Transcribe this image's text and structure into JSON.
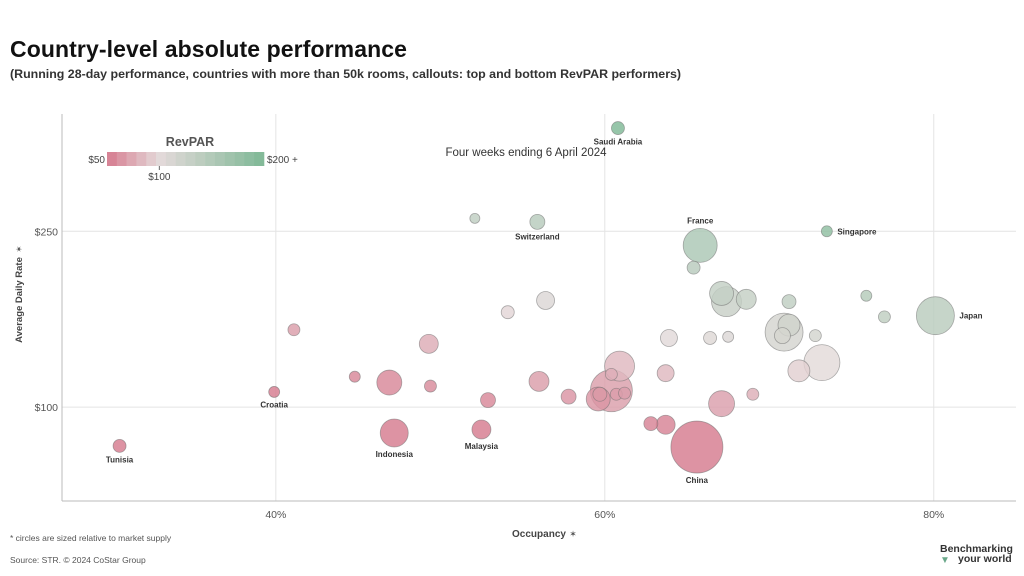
{
  "title": "Country-level absolute performance",
  "subtitle": "(Running 28-day performance, countries with more than 50k rooms, callouts: top and bottom RevPAR performers)",
  "footnote": "* circles are sized relative to market supply",
  "source": "Source: STR. © 2024 CoStar Group",
  "brand": {
    "line1": "Benchmarking",
    "line2": "your world",
    "mark": "▼"
  },
  "colors": {
    "low": "#d67b8f",
    "mid": "#e4dada",
    "high": "#7fb896",
    "grid": "#e4e4e4",
    "axis": "#bbbbbb"
  },
  "chart_data": {
    "type": "scatter",
    "annotation": "Four weeks ending 6 April 2024",
    "xlabel": "Occupancy",
    "ylabel": "Average Daily Rate",
    "axis_pin": "✶",
    "xlim": [
      0.27,
      0.85
    ],
    "ylim": [
      20,
      350
    ],
    "xticks": [
      {
        "v": 0.4,
        "label": "40%"
      },
      {
        "v": 0.6,
        "label": "60%"
      },
      {
        "v": 0.8,
        "label": "80%"
      }
    ],
    "yticks": [
      {
        "v": 100,
        "label": "$100"
      },
      {
        "v": 250,
        "label": "$250"
      }
    ],
    "grid": true,
    "legend": {
      "title": "RevPAR",
      "min_label": "$50",
      "max_label": "$200 +",
      "mid_label": "$100",
      "min": 50,
      "mid": 100,
      "max": 200
    },
    "size_note": "circles are sized relative to market supply",
    "points": [
      {
        "x": 0.608,
        "y": 338,
        "s": 6.5,
        "label": "Saudi Arabia",
        "lpos": "below"
      },
      {
        "x": 0.521,
        "y": 261,
        "s": 5,
        "label": "",
        "lpos": ""
      },
      {
        "x": 0.559,
        "y": 258,
        "s": 7.5,
        "label": "Switzerland",
        "lpos": "below"
      },
      {
        "x": 0.658,
        "y": 238,
        "s": 17,
        "label": "France",
        "lpos": "above"
      },
      {
        "x": 0.654,
        "y": 219,
        "s": 6.5,
        "label": "",
        "lpos": ""
      },
      {
        "x": 0.735,
        "y": 250,
        "s": 5.5,
        "label": "Singapore",
        "lpos": "right"
      },
      {
        "x": 0.801,
        "y": 178,
        "s": 19,
        "label": "Japan",
        "lpos": "right"
      },
      {
        "x": 0.759,
        "y": 195,
        "s": 5.5,
        "label": "",
        "lpos": ""
      },
      {
        "x": 0.77,
        "y": 177,
        "s": 6,
        "label": "",
        "lpos": ""
      },
      {
        "x": 0.712,
        "y": 190,
        "s": 7,
        "label": "",
        "lpos": ""
      },
      {
        "x": 0.674,
        "y": 190,
        "s": 15,
        "label": "",
        "lpos": ""
      },
      {
        "x": 0.686,
        "y": 192,
        "s": 10,
        "label": "",
        "lpos": ""
      },
      {
        "x": 0.671,
        "y": 197,
        "s": 12,
        "label": "",
        "lpos": ""
      },
      {
        "x": 0.709,
        "y": 164,
        "s": 19,
        "label": "",
        "lpos": ""
      },
      {
        "x": 0.712,
        "y": 170,
        "s": 11,
        "label": "",
        "lpos": ""
      },
      {
        "x": 0.708,
        "y": 161,
        "s": 8,
        "label": "",
        "lpos": ""
      },
      {
        "x": 0.728,
        "y": 161,
        "s": 6,
        "label": "",
        "lpos": ""
      },
      {
        "x": 0.732,
        "y": 138,
        "s": 18,
        "label": "",
        "lpos": ""
      },
      {
        "x": 0.718,
        "y": 131,
        "s": 11,
        "label": "",
        "lpos": ""
      },
      {
        "x": 0.675,
        "y": 160,
        "s": 5.5,
        "label": "",
        "lpos": ""
      },
      {
        "x": 0.664,
        "y": 159,
        "s": 6.5,
        "label": "",
        "lpos": ""
      },
      {
        "x": 0.639,
        "y": 159,
        "s": 8.5,
        "label": "",
        "lpos": ""
      },
      {
        "x": 0.637,
        "y": 129,
        "s": 8.5,
        "label": "",
        "lpos": ""
      },
      {
        "x": 0.69,
        "y": 111,
        "s": 6,
        "label": "",
        "lpos": ""
      },
      {
        "x": 0.671,
        "y": 103,
        "s": 13,
        "label": "",
        "lpos": ""
      },
      {
        "x": 0.564,
        "y": 191,
        "s": 9,
        "label": "",
        "lpos": ""
      },
      {
        "x": 0.541,
        "y": 181,
        "s": 6.5,
        "label": "",
        "lpos": ""
      },
      {
        "x": 0.609,
        "y": 135,
        "s": 15,
        "label": "",
        "lpos": ""
      },
      {
        "x": 0.596,
        "y": 107,
        "s": 12,
        "label": "",
        "lpos": ""
      },
      {
        "x": 0.604,
        "y": 114,
        "s": 21,
        "label": "",
        "lpos": ""
      },
      {
        "x": 0.597,
        "y": 111,
        "s": 7,
        "label": "",
        "lpos": ""
      },
      {
        "x": 0.607,
        "y": 111,
        "s": 6,
        "label": "",
        "lpos": ""
      },
      {
        "x": 0.612,
        "y": 112,
        "s": 6,
        "label": "",
        "lpos": ""
      },
      {
        "x": 0.604,
        "y": 128,
        "s": 6,
        "label": "",
        "lpos": ""
      },
      {
        "x": 0.578,
        "y": 109,
        "s": 7.5,
        "label": "",
        "lpos": ""
      },
      {
        "x": 0.56,
        "y": 122,
        "s": 10,
        "label": "",
        "lpos": ""
      },
      {
        "x": 0.628,
        "y": 86,
        "s": 7,
        "label": "",
        "lpos": ""
      },
      {
        "x": 0.637,
        "y": 85,
        "s": 9.5,
        "label": "",
        "lpos": ""
      },
      {
        "x": 0.656,
        "y": 66,
        "s": 26,
        "label": "China",
        "lpos": "below"
      },
      {
        "x": 0.493,
        "y": 154,
        "s": 9.5,
        "label": "",
        "lpos": ""
      },
      {
        "x": 0.411,
        "y": 166,
        "s": 6,
        "label": "",
        "lpos": ""
      },
      {
        "x": 0.448,
        "y": 126,
        "s": 5.5,
        "label": "",
        "lpos": ""
      },
      {
        "x": 0.469,
        "y": 121,
        "s": 12.5,
        "label": "",
        "lpos": ""
      },
      {
        "x": 0.494,
        "y": 118,
        "s": 6,
        "label": "",
        "lpos": ""
      },
      {
        "x": 0.529,
        "y": 106,
        "s": 7.5,
        "label": "",
        "lpos": ""
      },
      {
        "x": 0.399,
        "y": 113,
        "s": 5.5,
        "label": "Croatia",
        "lpos": "below"
      },
      {
        "x": 0.472,
        "y": 78,
        "s": 14,
        "label": "Indonesia",
        "lpos": "below"
      },
      {
        "x": 0.525,
        "y": 81,
        "s": 9.5,
        "label": "Malaysia",
        "lpos": "below"
      },
      {
        "x": 0.305,
        "y": 67,
        "s": 6.5,
        "label": "Tunisia",
        "lpos": "below"
      }
    ]
  }
}
